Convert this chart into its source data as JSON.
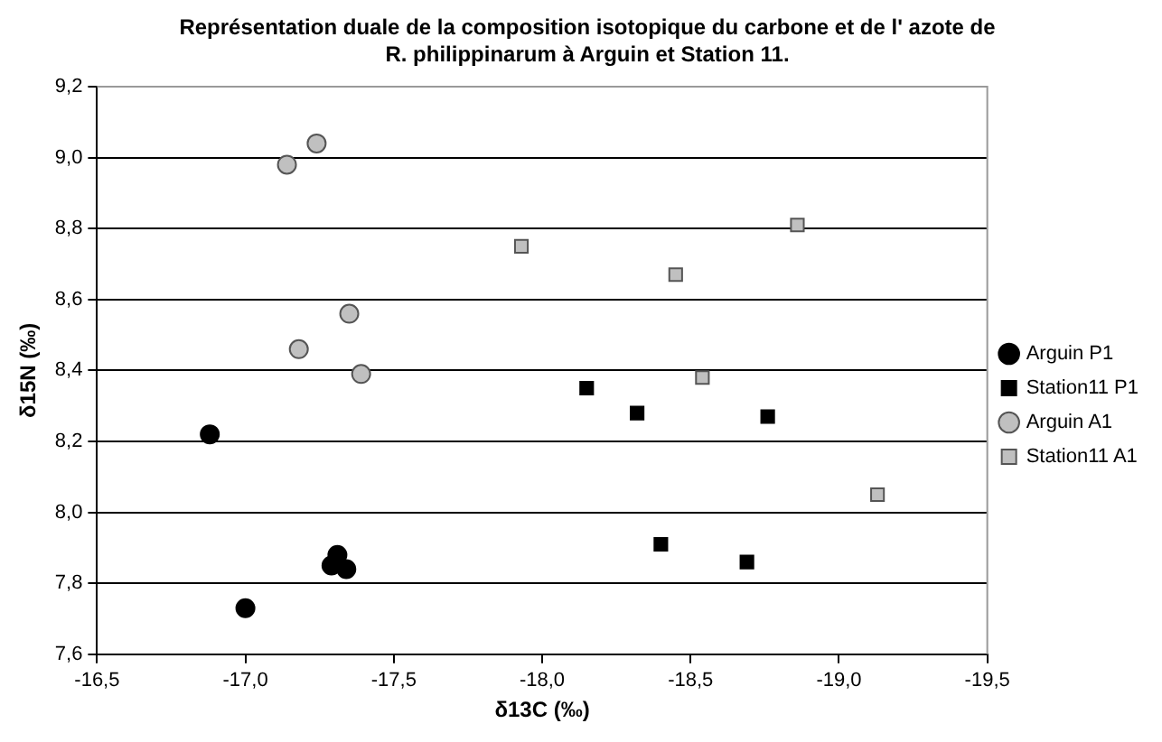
{
  "chart_data": {
    "type": "scatter",
    "title": "Représentation duale de la composition isotopique du carbone et de l' azote de R. philippinarum  à Arguin et Station 11.",
    "xlabel": "δ13C (‰)",
    "ylabel": "δ15N (‰)",
    "xlim": [
      -16.5,
      -19.5
    ],
    "xticks": [
      {
        "value": -16.5,
        "label": "-16,5"
      },
      {
        "value": -17,
        "label": "-17,0"
      },
      {
        "value": -17.5,
        "label": "-17,5"
      },
      {
        "value": -18,
        "label": "-18,0"
      },
      {
        "value": -18.5,
        "label": "-18,5"
      },
      {
        "value": -19,
        "label": "-19,0"
      },
      {
        "value": -19.5,
        "label": "-19,5"
      }
    ],
    "ylim": [
      7.6,
      9.2
    ],
    "yticks": [
      {
        "value": 7.6,
        "label": "7,6"
      },
      {
        "value": 7.8,
        "label": "7,8"
      },
      {
        "value": 8,
        "label": "8,0"
      },
      {
        "value": 8.2,
        "label": "8,2"
      },
      {
        "value": 8.4,
        "label": "8,4"
      },
      {
        "value": 8.6,
        "label": "8,6"
      },
      {
        "value": 8.8,
        "label": "8,8"
      },
      {
        "value": 9,
        "label": "9,0"
      },
      {
        "value": 9.2,
        "label": "9,2"
      }
    ],
    "grid": "y",
    "legend": "right",
    "series": [
      {
        "name": "Arguin P1",
        "color": "#000000",
        "marker": "circle",
        "x": [
          -16.88,
          -17.0,
          -17.31,
          -17.29,
          -17.34
        ],
        "values": [
          8.22,
          7.73,
          7.88,
          7.85,
          7.84
        ]
      },
      {
        "name": "Station11 P1",
        "color": "#000000",
        "marker": "square",
        "x": [
          -18.15,
          -18.32,
          -18.76,
          -18.4,
          -18.69
        ],
        "values": [
          8.35,
          8.28,
          8.27,
          7.91,
          7.86
        ]
      },
      {
        "name": "Arguin A1",
        "color": "#c0c0c0",
        "marker": "circle",
        "x": [
          -17.14,
          -17.24,
          -17.35,
          -17.18,
          -17.39
        ],
        "values": [
          8.98,
          9.04,
          8.56,
          8.46,
          8.39
        ]
      },
      {
        "name": "Station11 A1",
        "color": "#c0c0c0",
        "marker": "square",
        "x": [
          -17.93,
          -18.86,
          -18.45,
          -18.54,
          -19.13
        ],
        "values": [
          8.75,
          8.81,
          8.67,
          8.38,
          8.05
        ]
      }
    ]
  }
}
